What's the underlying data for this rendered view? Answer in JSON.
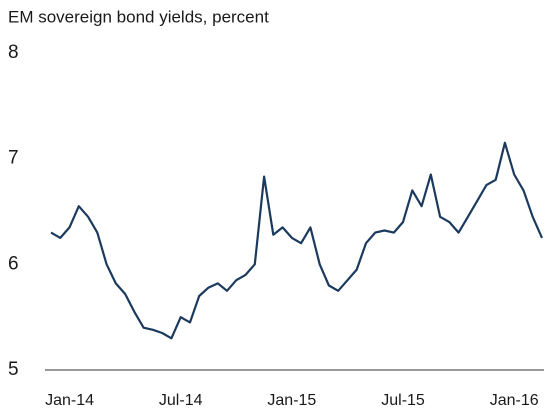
{
  "chart_data": {
    "type": "line",
    "title": "EM sovereign bond yields, percent",
    "categories": [
      null,
      null,
      "Jan-14",
      null,
      null,
      null,
      null,
      null,
      null,
      null,
      null,
      null,
      null,
      null,
      "Jul-14",
      null,
      null,
      null,
      null,
      null,
      null,
      null,
      null,
      null,
      null,
      null,
      "Jan-15",
      null,
      null,
      null,
      null,
      null,
      null,
      null,
      null,
      null,
      null,
      null,
      "Jul-15",
      null,
      null,
      null,
      null,
      null,
      null,
      null,
      null,
      null,
      null,
      null,
      "Jan-16",
      null,
      null,
      null
    ],
    "series": [
      {
        "name": null,
        "color": "#1b3a5e",
        "values": [
          6.3,
          6.25,
          6.35,
          6.55,
          6.45,
          6.3,
          6.0,
          5.82,
          5.72,
          5.55,
          5.4,
          5.38,
          5.35,
          5.3,
          5.5,
          5.45,
          5.7,
          5.78,
          5.82,
          5.75,
          5.85,
          5.9,
          6.0,
          6.83,
          6.28,
          6.35,
          6.25,
          6.2,
          6.35,
          6.0,
          5.8,
          5.75,
          5.85,
          5.95,
          6.2,
          6.3,
          6.32,
          6.3,
          6.4,
          6.7,
          6.55,
          6.85,
          6.45,
          6.4,
          6.3,
          6.45,
          6.6,
          6.75,
          6.8,
          7.15,
          6.85,
          6.7,
          6.45,
          6.25
        ]
      }
    ],
    "ylim": [
      5,
      8
    ],
    "yticks": [
      5,
      6,
      7,
      8
    ],
    "grid": false
  }
}
